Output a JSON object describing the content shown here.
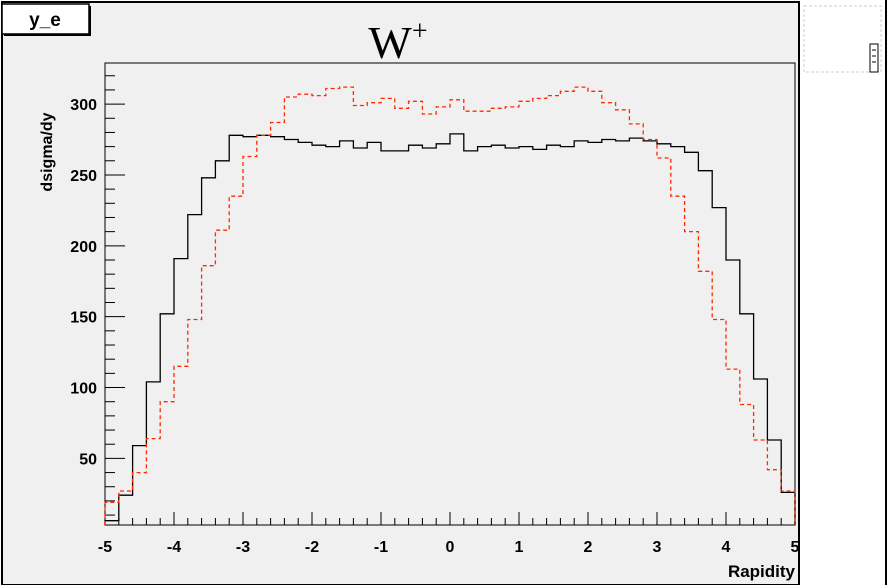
{
  "stat_box": {
    "label": "y_e"
  },
  "chart_data": {
    "type": "bar",
    "title": "W+",
    "title_main": "W",
    "title_sup": "+",
    "xlabel": "Rapidity",
    "ylabel": "dsigma/dy",
    "xlim": [
      -5,
      5
    ],
    "ylim": [
      3,
      329
    ],
    "x_ticks": [
      "-5",
      "-4",
      "-3",
      "-2",
      "-1",
      "0",
      "1",
      "2",
      "3",
      "4",
      "5"
    ],
    "y_ticks": [
      "50",
      "100",
      "150",
      "200",
      "250",
      "300"
    ],
    "grid": false,
    "bin_edges": [
      -5,
      -4.8,
      -4.6,
      -4.4,
      -4.2,
      -4,
      -3.8,
      -3.6,
      -3.4,
      -3.2,
      -3,
      -2.8,
      -2.6,
      -2.4,
      -2.2,
      -2,
      -1.8,
      -1.6,
      -1.4,
      -1.2,
      -1,
      -0.8,
      -0.6,
      -0.4,
      -0.2,
      0,
      0.2,
      0.4,
      0.6,
      0.8,
      1,
      1.2,
      1.4,
      1.6,
      1.8,
      2,
      2.2,
      2.4,
      2.6,
      2.8,
      3,
      3.2,
      3.4,
      3.6,
      3.8,
      4,
      4.2,
      4.4,
      4.6,
      4.8,
      5
    ],
    "series": [
      {
        "color": "#000000",
        "style": "solid",
        "values": [
          6,
          24,
          59,
          104,
          152,
          191,
          222,
          248,
          260,
          278,
          277,
          278,
          277,
          275,
          273,
          271,
          270,
          274,
          269,
          273,
          267,
          267,
          271,
          269,
          272,
          279,
          267,
          270,
          271,
          269,
          270,
          268,
          271,
          270,
          274,
          273,
          275,
          274,
          276,
          274,
          272,
          270,
          266,
          253,
          227,
          190,
          152,
          106,
          63,
          26,
          5
        ]
      },
      {
        "color": "#ff2a00",
        "style": "dashed",
        "values": [
          19,
          27,
          40,
          64,
          90,
          115,
          148,
          186,
          211,
          235,
          263,
          278,
          287,
          305,
          307,
          306,
          311,
          312,
          299,
          301,
          304,
          297,
          302,
          293,
          298,
          303,
          295,
          295,
          297,
          298,
          302,
          304,
          306,
          309,
          312,
          309,
          301,
          296,
          286,
          275,
          262,
          235,
          210,
          182,
          148,
          113,
          88,
          63,
          42,
          27,
          17
        ]
      }
    ]
  }
}
